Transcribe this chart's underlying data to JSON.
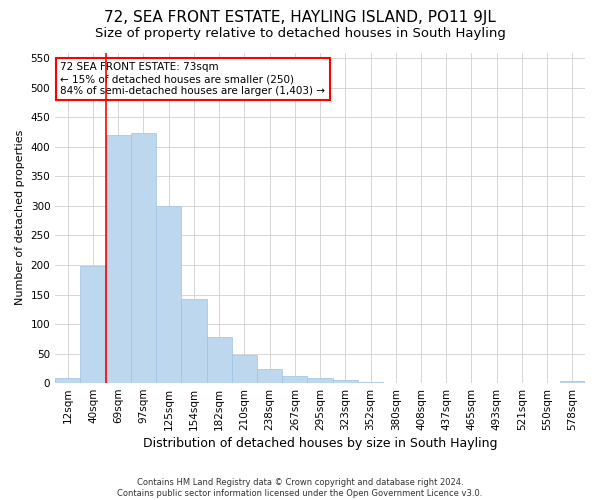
{
  "title": "72, SEA FRONT ESTATE, HAYLING ISLAND, PO11 9JL",
  "subtitle": "Size of property relative to detached houses in South Hayling",
  "xlabel": "Distribution of detached houses by size in South Hayling",
  "ylabel": "Number of detached properties",
  "footer_line1": "Contains HM Land Registry data © Crown copyright and database right 2024.",
  "footer_line2": "Contains public sector information licensed under the Open Government Licence v3.0.",
  "categories": [
    "12sqm",
    "40sqm",
    "69sqm",
    "97sqm",
    "125sqm",
    "154sqm",
    "182sqm",
    "210sqm",
    "238sqm",
    "267sqm",
    "295sqm",
    "323sqm",
    "352sqm",
    "380sqm",
    "408sqm",
    "437sqm",
    "465sqm",
    "493sqm",
    "521sqm",
    "550sqm",
    "578sqm"
  ],
  "values": [
    8,
    198,
    420,
    424,
    300,
    143,
    78,
    48,
    24,
    12,
    8,
    6,
    2,
    0,
    0,
    0,
    0,
    0,
    0,
    0,
    3
  ],
  "bar_color": "#bdd7ee",
  "bar_edge_color": "#9dc3e6",
  "red_line_index": 2,
  "annotation_text": "72 SEA FRONT ESTATE: 73sqm\n← 15% of detached houses are smaller (250)\n84% of semi-detached houses are larger (1,403) →",
  "annotation_box_color": "white",
  "annotation_box_edge_color": "red",
  "ylim": [
    0,
    560
  ],
  "yticks": [
    0,
    50,
    100,
    150,
    200,
    250,
    300,
    350,
    400,
    450,
    500,
    550
  ],
  "grid_color": "#d0d0d0",
  "background_color": "white",
  "title_fontsize": 11,
  "subtitle_fontsize": 9.5,
  "xlabel_fontsize": 9,
  "ylabel_fontsize": 8,
  "tick_fontsize": 7.5,
  "annotation_fontsize": 7.5,
  "footer_fontsize": 6
}
